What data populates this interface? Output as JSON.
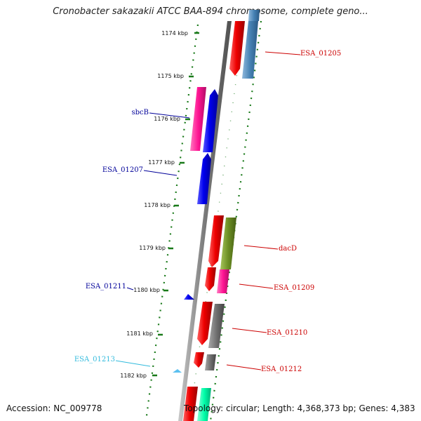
{
  "title": "Cronobacter sakazakii ATCC BAA-894 chromosome, complete geno...",
  "footer": {
    "accession": "Accession: NC_009778",
    "topology": "Topology: circular; Length: 4,368,373 bp; Genes: 4,383"
  },
  "ticks": [
    "1174 kbp",
    "1175 kbp",
    "1176 kbp",
    "1177 kbp",
    "1178 kbp",
    "1179 kbp",
    "1180 kbp",
    "1181 kbp",
    "1182 kbp"
  ],
  "genes": [
    {
      "label": "ESA_01205",
      "color": "#cc0000"
    },
    {
      "label": "sbcB",
      "color": "#000099"
    },
    {
      "label": "ESA_01207",
      "color": "#000099"
    },
    {
      "label": "dacD",
      "color": "#cc0000"
    },
    {
      "label": "ESA_01209",
      "color": "#cc0000"
    },
    {
      "label": "ESA_01211",
      "color": "#000099"
    },
    {
      "label": "ESA_01210",
      "color": "#cc0000"
    },
    {
      "label": "ESA_01213",
      "color": "#33bbdd"
    },
    {
      "label": "ESA_01212",
      "color": "#cc0000"
    }
  ],
  "colors": {
    "backbone": "#8a8a8a",
    "tick": "#1a7a1a",
    "red": "#ee0000",
    "steelblue": "#4682b4",
    "blue": "#0000ee",
    "pink": "#ff1493",
    "olive": "#6b8e23",
    "gray": "#707070",
    "cyan": "#5bc0f0",
    "aqua": "#00ffaa"
  }
}
